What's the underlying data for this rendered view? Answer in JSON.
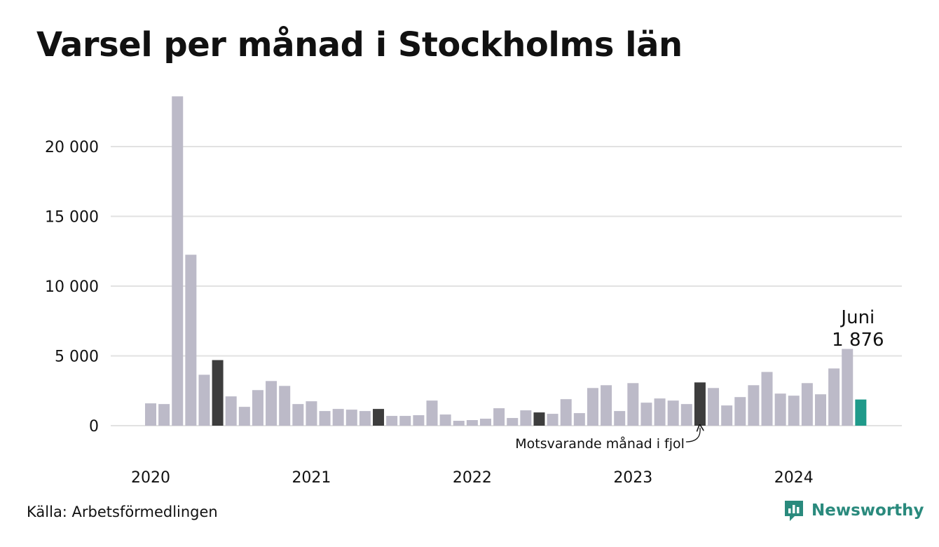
{
  "title": "Varsel per månad i Stockholms län",
  "source": "Källa: Arbetsförmedlingen",
  "brand": {
    "name": "Newsworthy",
    "icon": "newsworthy-logo-icon"
  },
  "colors": {
    "bar": "#bcbac8",
    "same_month": "#3d3d3d",
    "current": "#1f9a8a",
    "grid": "#e2e2e2",
    "brand": "#2a8a7d"
  },
  "annotation": {
    "label": "Motsvarande månad i fjol",
    "current_month": "Juni",
    "current_value": "1 876"
  },
  "chart_data": {
    "type": "bar",
    "title": "Varsel per månad i Stockholms län",
    "xlabel": "",
    "ylabel": "",
    "ylim": [
      0,
      24000
    ],
    "yticks": [
      0,
      5000,
      10000,
      15000,
      20000
    ],
    "ytick_labels": [
      "0",
      "5 000",
      "10 000",
      "15 000",
      "20 000"
    ],
    "year_labels": [
      "2020",
      "2021",
      "2022",
      "2023",
      "2024"
    ],
    "grid": true,
    "categories": [
      "2020-01",
      "2020-02",
      "2020-03",
      "2020-04",
      "2020-05",
      "2020-06",
      "2020-07",
      "2020-08",
      "2020-09",
      "2020-10",
      "2020-11",
      "2020-12",
      "2021-01",
      "2021-02",
      "2021-03",
      "2021-04",
      "2021-05",
      "2021-06",
      "2021-07",
      "2021-08",
      "2021-09",
      "2021-10",
      "2021-11",
      "2021-12",
      "2022-01",
      "2022-02",
      "2022-03",
      "2022-04",
      "2022-05",
      "2022-06",
      "2022-07",
      "2022-08",
      "2022-09",
      "2022-10",
      "2022-11",
      "2022-12",
      "2023-01",
      "2023-02",
      "2023-03",
      "2023-04",
      "2023-05",
      "2023-06",
      "2023-07",
      "2023-08",
      "2023-09",
      "2023-10",
      "2023-11",
      "2023-12",
      "2024-01",
      "2024-02",
      "2024-03",
      "2024-04",
      "2024-05",
      "2024-06"
    ],
    "values": [
      1600,
      1550,
      23600,
      12250,
      3650,
      4700,
      2100,
      1350,
      2550,
      3200,
      2850,
      1550,
      1750,
      1050,
      1200,
      1150,
      1050,
      1200,
      700,
      700,
      750,
      1800,
      800,
      350,
      400,
      500,
      1250,
      550,
      1100,
      950,
      850,
      1900,
      900,
      2700,
      2900,
      1050,
      3050,
      1650,
      1950,
      1800,
      1550,
      3100,
      2700,
      1450,
      2050,
      2900,
      3850,
      2300,
      2150,
      3050,
      2250,
      4100,
      5500,
      1876
    ],
    "highlight_same_month": [
      "2020-06",
      "2021-06",
      "2022-06",
      "2023-06"
    ],
    "highlight_current": "2024-06"
  }
}
